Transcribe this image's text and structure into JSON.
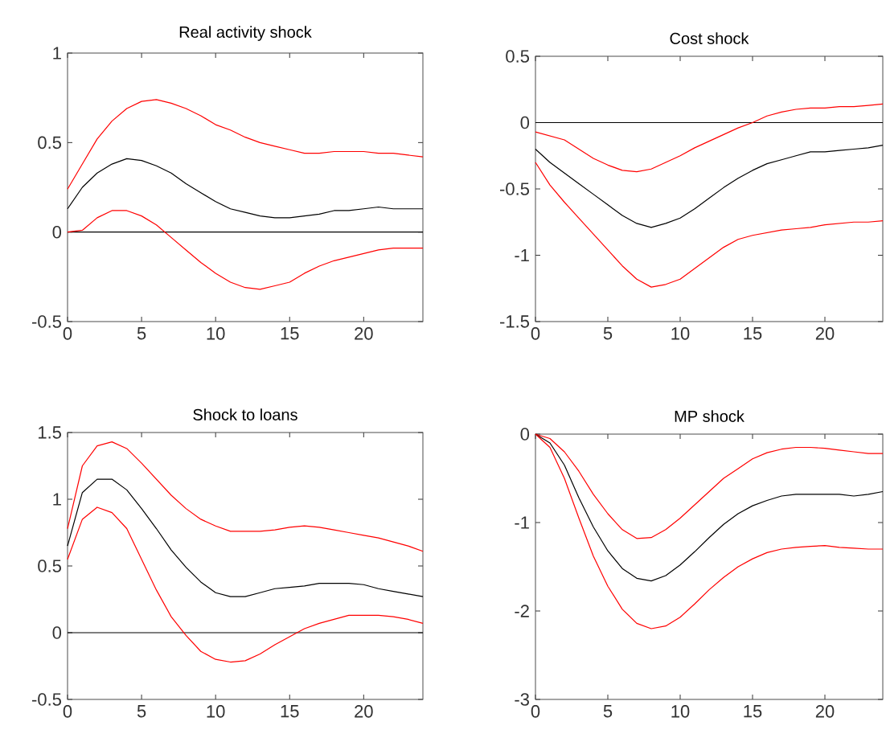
{
  "chart_data": [
    {
      "type": "line",
      "title": "Real activity shock",
      "x": [
        0,
        1,
        2,
        3,
        4,
        5,
        6,
        7,
        8,
        9,
        10,
        11,
        12,
        13,
        14,
        15,
        16,
        17,
        18,
        19,
        20,
        21,
        22,
        23,
        24
      ],
      "xlim": [
        0,
        24
      ],
      "ylim": [
        -0.5,
        1
      ],
      "xticks": [
        0,
        5,
        10,
        15,
        20
      ],
      "yticks": [
        -0.5,
        0,
        0.5,
        1
      ],
      "ref_lines": [
        {
          "axis": "y",
          "value": 0,
          "color": "#000000"
        }
      ],
      "series": [
        {
          "color": "#ff0000",
          "values": [
            0.24,
            0.38,
            0.52,
            0.62,
            0.69,
            0.73,
            0.74,
            0.72,
            0.69,
            0.65,
            0.6,
            0.57,
            0.53,
            0.5,
            0.48,
            0.46,
            0.44,
            0.44,
            0.45,
            0.45,
            0.45,
            0.44,
            0.44,
            0.43,
            0.42
          ]
        },
        {
          "color": "#000000",
          "values": [
            0.13,
            0.25,
            0.33,
            0.38,
            0.41,
            0.4,
            0.37,
            0.33,
            0.27,
            0.22,
            0.17,
            0.13,
            0.11,
            0.09,
            0.08,
            0.08,
            0.09,
            0.1,
            0.12,
            0.12,
            0.13,
            0.14,
            0.13,
            0.13,
            0.13
          ]
        },
        {
          "color": "#ff0000",
          "values": [
            0,
            0.01,
            0.08,
            0.12,
            0.12,
            0.09,
            0.04,
            -0.03,
            -0.1,
            -0.17,
            -0.23,
            -0.28,
            -0.31,
            -0.32,
            -0.3,
            -0.28,
            -0.23,
            -0.19,
            -0.16,
            -0.14,
            -0.12,
            -0.1,
            -0.09,
            -0.09,
            -0.09
          ]
        }
      ]
    },
    {
      "type": "line",
      "title": "Cost shock",
      "x": [
        0,
        1,
        2,
        3,
        4,
        5,
        6,
        7,
        8,
        9,
        10,
        11,
        12,
        13,
        14,
        15,
        16,
        17,
        18,
        19,
        20,
        21,
        22,
        23,
        24
      ],
      "xlim": [
        0,
        24
      ],
      "ylim": [
        -1.5,
        0.5
      ],
      "xticks": [
        0,
        5,
        10,
        15,
        20
      ],
      "yticks": [
        -1.5,
        -1,
        -0.5,
        0,
        0.5
      ],
      "ref_lines": [
        {
          "axis": "y",
          "value": 0,
          "color": "#000000"
        }
      ],
      "series": [
        {
          "color": "#ff0000",
          "values": [
            -0.07,
            -0.1,
            -0.13,
            -0.2,
            -0.27,
            -0.32,
            -0.36,
            -0.37,
            -0.35,
            -0.3,
            -0.25,
            -0.19,
            -0.14,
            -0.09,
            -0.04,
            0,
            0.05,
            0.08,
            0.1,
            0.11,
            0.11,
            0.12,
            0.12,
            0.13,
            0.14
          ]
        },
        {
          "color": "#000000",
          "values": [
            -0.2,
            -0.3,
            -0.38,
            -0.46,
            -0.54,
            -0.62,
            -0.7,
            -0.76,
            -0.79,
            -0.76,
            -0.72,
            -0.65,
            -0.57,
            -0.49,
            -0.42,
            -0.36,
            -0.31,
            -0.28,
            -0.25,
            -0.22,
            -0.22,
            -0.21,
            -0.2,
            -0.19,
            -0.17
          ]
        },
        {
          "color": "#ff0000",
          "values": [
            -0.3,
            -0.47,
            -0.6,
            -0.72,
            -0.84,
            -0.96,
            -1.08,
            -1.18,
            -1.24,
            -1.22,
            -1.18,
            -1.1,
            -1.02,
            -0.94,
            -0.88,
            -0.85,
            -0.83,
            -0.81,
            -0.8,
            -0.79,
            -0.77,
            -0.76,
            -0.75,
            -0.75,
            -0.74
          ]
        }
      ]
    },
    {
      "type": "line",
      "title": "Shock to loans",
      "x": [
        0,
        1,
        2,
        3,
        4,
        5,
        6,
        7,
        8,
        9,
        10,
        11,
        12,
        13,
        14,
        15,
        16,
        17,
        18,
        19,
        20,
        21,
        22,
        23,
        24
      ],
      "xlim": [
        0,
        24
      ],
      "ylim": [
        -0.5,
        1.5
      ],
      "xticks": [
        0,
        5,
        10,
        15,
        20
      ],
      "yticks": [
        -0.5,
        0,
        0.5,
        1,
        1.5
      ],
      "ref_lines": [
        {
          "axis": "y",
          "value": 0,
          "color": "#000000"
        }
      ],
      "series": [
        {
          "color": "#ff0000",
          "values": [
            0.78,
            1.25,
            1.4,
            1.43,
            1.38,
            1.27,
            1.15,
            1.03,
            0.93,
            0.85,
            0.8,
            0.76,
            0.76,
            0.76,
            0.77,
            0.79,
            0.8,
            0.79,
            0.77,
            0.75,
            0.73,
            0.71,
            0.68,
            0.65,
            0.61
          ]
        },
        {
          "color": "#000000",
          "values": [
            0.65,
            1.05,
            1.15,
            1.15,
            1.07,
            0.93,
            0.78,
            0.62,
            0.49,
            0.38,
            0.3,
            0.27,
            0.27,
            0.3,
            0.33,
            0.34,
            0.35,
            0.37,
            0.37,
            0.37,
            0.36,
            0.33,
            0.31,
            0.29,
            0.27
          ]
        },
        {
          "color": "#ff0000",
          "values": [
            0.55,
            0.85,
            0.94,
            0.9,
            0.78,
            0.55,
            0.32,
            0.12,
            -0.02,
            -0.14,
            -0.2,
            -0.22,
            -0.21,
            -0.16,
            -0.09,
            -0.03,
            0.03,
            0.07,
            0.1,
            0.13,
            0.13,
            0.13,
            0.12,
            0.1,
            0.07
          ]
        }
      ]
    },
    {
      "type": "line",
      "title": "MP shock",
      "x": [
        0,
        1,
        2,
        3,
        4,
        5,
        6,
        7,
        8,
        9,
        10,
        11,
        12,
        13,
        14,
        15,
        16,
        17,
        18,
        19,
        20,
        21,
        22,
        23,
        24
      ],
      "xlim": [
        0,
        24
      ],
      "ylim": [
        -3,
        0
      ],
      "xticks": [
        0,
        5,
        10,
        15,
        20
      ],
      "yticks": [
        -3,
        -2,
        -1,
        0
      ],
      "series": [
        {
          "color": "#ff0000",
          "values": [
            0,
            -0.05,
            -0.2,
            -0.42,
            -0.68,
            -0.9,
            -1.08,
            -1.18,
            -1.17,
            -1.08,
            -0.95,
            -0.8,
            -0.65,
            -0.5,
            -0.39,
            -0.28,
            -0.21,
            -0.17,
            -0.15,
            -0.15,
            -0.16,
            -0.18,
            -0.2,
            -0.22,
            -0.22
          ]
        },
        {
          "color": "#000000",
          "values": [
            0,
            -0.1,
            -0.35,
            -0.72,
            -1.05,
            -1.32,
            -1.52,
            -1.63,
            -1.66,
            -1.6,
            -1.48,
            -1.33,
            -1.17,
            -1.02,
            -0.9,
            -0.81,
            -0.75,
            -0.7,
            -0.68,
            -0.68,
            -0.68,
            -0.68,
            -0.7,
            -0.68,
            -0.65
          ]
        },
        {
          "color": "#ff0000",
          "values": [
            0,
            -0.15,
            -0.5,
            -0.95,
            -1.38,
            -1.72,
            -1.98,
            -2.14,
            -2.2,
            -2.17,
            -2.07,
            -1.92,
            -1.76,
            -1.62,
            -1.5,
            -1.41,
            -1.34,
            -1.3,
            -1.28,
            -1.27,
            -1.26,
            -1.28,
            -1.29,
            -1.3,
            -1.3
          ]
        }
      ]
    }
  ]
}
